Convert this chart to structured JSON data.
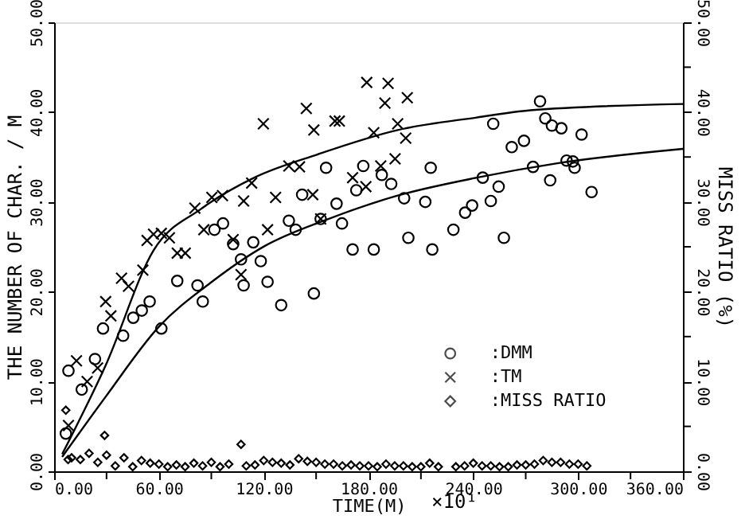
{
  "chart_data": {
    "type": "scatter",
    "xlabel": "TIME(M)",
    "ylabel": "THE NUMBER OF CHAR. / M",
    "y2label": "MISS RATIO (%)",
    "annotations": [
      "×10¹"
    ],
    "xlim": [
      0,
      360
    ],
    "xticks": [
      {
        "value": 0,
        "label": "0.00"
      },
      {
        "value": 30,
        "label": null
      },
      {
        "value": 60,
        "label": "60.00"
      },
      {
        "value": 90,
        "label": null
      },
      {
        "value": 120,
        "label": "120.00"
      },
      {
        "value": 150,
        "label": null
      },
      {
        "value": 180,
        "label": "180.00"
      },
      {
        "value": 210,
        "label": null
      },
      {
        "value": 240,
        "label": "240.00"
      },
      {
        "value": 270,
        "label": null
      },
      {
        "value": 300,
        "label": "300.00"
      },
      {
        "value": 330,
        "label": null
      },
      {
        "value": 360,
        "label": "360.00"
      }
    ],
    "ylim": [
      0,
      50
    ],
    "yticks": [
      {
        "value": 0,
        "label": "0.00"
      },
      {
        "value": 10,
        "label": "10.00"
      },
      {
        "value": 20,
        "label": "20.00"
      },
      {
        "value": 30,
        "label": "30.00"
      },
      {
        "value": 40,
        "label": "40.00"
      },
      {
        "value": 50,
        "label": "50.00"
      }
    ],
    "y2lim": [
      0,
      50
    ],
    "y2ticks": [
      {
        "value": 0,
        "label": "0.00"
      },
      {
        "value": 5,
        "label": null
      },
      {
        "value": 10,
        "label": "10.00"
      },
      {
        "value": 15,
        "label": null
      },
      {
        "value": 20,
        "label": "20.00"
      },
      {
        "value": 25,
        "label": null
      },
      {
        "value": 30,
        "label": "30.00"
      },
      {
        "value": 35,
        "label": null
      },
      {
        "value": 40,
        "label": "40.00"
      },
      {
        "value": 45,
        "label": null
      },
      {
        "value": 50,
        "label": "50.00"
      }
    ],
    "grid": false,
    "legend": "bottom right",
    "series": [
      {
        "name": ":DMM",
        "color": "#000000",
        "marker": "circle",
        "x": [
          6.7,
          8.2,
          15.8,
          23.4,
          28,
          39.5,
          45.3,
          50.2,
          54.7,
          61.4,
          70.5,
          82.1,
          85.1,
          91.8,
          96.7,
          102.5,
          107,
          108.5,
          114,
          118.3,
          122.2,
          130,
          134.4,
          138.3,
          142,
          148.7,
          152.6,
          155.7,
          161.7,
          164.8,
          170.9,
          173,
          177,
          183,
          187.6,
          193,
          200.4,
          202.8,
          212.5,
          215.6,
          216.5,
          228.6,
          235.3,
          239.3,
          245.4,
          250,
          254.5,
          251.4,
          257.5,
          262,
          269,
          274.2,
          278.2,
          281.2,
          284,
          285,
          290.4,
          293.4,
          297,
          298,
          302,
          307.7
        ],
        "values": [
          4.2,
          11.2,
          9.1,
          12.5,
          15.9,
          15.1,
          17.1,
          17.9,
          18.9,
          15.9,
          21.2,
          20.7,
          18.9,
          26.9,
          27.6,
          25.3,
          23.6,
          20.7,
          25.5,
          23.4,
          21.1,
          18.5,
          27.9,
          26.9,
          30.8,
          19.8,
          28.1,
          33.8,
          29.8,
          27.6,
          24.7,
          31.3,
          34,
          24.7,
          33,
          32,
          30.4,
          26,
          30,
          33.8,
          24.7,
          26.9,
          28.8,
          29.6,
          32.7,
          30.1,
          31.7,
          38.7,
          26,
          36.1,
          36.8,
          33.9,
          41.2,
          39.3,
          32.4,
          38.5,
          38.2,
          34.6,
          34.5,
          33.8,
          37.5,
          31.1
        ]
      },
      {
        "name": ":TM",
        "color": "#000000",
        "marker": "cross",
        "x": [
          8.2,
          12.8,
          18.9,
          24.9,
          29.5,
          32.5,
          38.6,
          42.6,
          50.8,
          53.2,
          56.9,
          61.4,
          66,
          70.5,
          75.1,
          80.6,
          85.7,
          90.3,
          96.4,
          102.5,
          107,
          108.5,
          113.1,
          119.8,
          122.2,
          126.8,
          134.4,
          140.5,
          144.4,
          148.1,
          148.7,
          152.6,
          160.8,
          163.3,
          170.9,
          178.5,
          179,
          183,
          187,
          189.4,
          191.2,
          195.2,
          196.7,
          201.3,
          202.2
        ],
        "values": [
          5.1,
          12.3,
          10,
          11.5,
          18.9,
          17.3,
          21.5,
          20.6,
          22.4,
          25.7,
          26.4,
          26.5,
          26,
          24.3,
          24.3,
          29.3,
          26.9,
          30.5,
          30.7,
          25.8,
          21.9,
          30.1,
          32.1,
          38.7,
          26.9,
          30.5,
          34,
          33.9,
          40.4,
          30.8,
          38,
          28.1,
          39,
          39,
          32.7,
          31.7,
          43.3,
          37.7,
          34,
          41,
          43.2,
          34.8,
          38.7,
          37.1,
          41.6
        ]
      },
      {
        "name": ":MISS RATIO",
        "color": "#000000",
        "marker": "diamond",
        "axis": "y2",
        "x": [
          6.7,
          8,
          10,
          15,
          20,
          25,
          28.9,
          30,
          35,
          40,
          45,
          50,
          55,
          60,
          65,
          70,
          75,
          80,
          85,
          90,
          95,
          100,
          107,
          110,
          115,
          120,
          125,
          130,
          135,
          140,
          145,
          150,
          155,
          160,
          165,
          170,
          175,
          180,
          185,
          190,
          195,
          200,
          205,
          210,
          215,
          220,
          230,
          235,
          240,
          245,
          250,
          255,
          260,
          265,
          270,
          275,
          280,
          285,
          290,
          295,
          300,
          305
        ],
        "values": [
          6.8,
          1.3,
          1.5,
          1.3,
          2,
          1,
          4,
          1.8,
          0.6,
          1.5,
          0.5,
          1.2,
          0.9,
          0.8,
          0.5,
          0.7,
          0.5,
          0.9,
          0.6,
          1,
          0.5,
          0.8,
          3,
          0.6,
          0.7,
          1.2,
          1,
          0.9,
          0.7,
          1.4,
          1.1,
          1,
          0.8,
          0.8,
          0.6,
          0.7,
          0.6,
          0.6,
          0.5,
          0.8,
          0.6,
          0.6,
          0.5,
          0.5,
          0.9,
          0.5,
          0.5,
          0.6,
          0.9,
          0.6,
          0.6,
          0.5,
          0.5,
          0.7,
          0.7,
          0.8,
          1.2,
          1,
          1,
          0.8,
          0.8,
          0.6
        ]
      },
      {
        "type": "line",
        "color": "#000000",
        "line_style": "solid",
        "x": [
          4.6,
          29.5,
          56.9,
          84,
          114.6,
          151,
          196.7,
          242,
          272.7,
          360
        ],
        "values": [
          1.9,
          11.8,
          24.6,
          29.2,
          32.7,
          35.3,
          38,
          39.4,
          40.2,
          40.9
        ]
      },
      {
        "type": "line",
        "color": "#000000",
        "line_style": "solid",
        "x": [
          4.6,
          29.5,
          60,
          90.3,
          120.7,
          157,
          196.7,
          242,
          288,
          360
        ],
        "values": [
          1.6,
          8.3,
          16.1,
          21.1,
          25.1,
          28.1,
          30.7,
          32.7,
          34.3,
          35.9
        ]
      }
    ]
  }
}
